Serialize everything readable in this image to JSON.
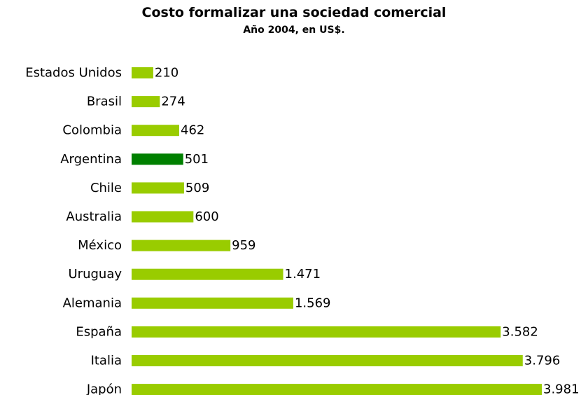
{
  "chart_data": {
    "type": "bar",
    "orientation": "horizontal",
    "title": "Costo formalizar una sociedad comercial",
    "subtitle": "Año 2004, en US$.",
    "xlabel": "",
    "ylabel": "",
    "grid": false,
    "legend": "none",
    "xlim": [
      0,
      3981
    ],
    "categories": [
      "Estados Unidos",
      "Brasil",
      "Colombia",
      "Argentina",
      "Chile",
      "Australia",
      "México",
      "Uruguay",
      "Alemania",
      "España",
      "Italia",
      "Japón"
    ],
    "values": [
      210,
      274,
      462,
      501,
      509,
      600,
      959,
      1471,
      1569,
      3582,
      3796,
      3981
    ],
    "value_labels": [
      "210",
      "274",
      "462",
      "501",
      "509",
      "600",
      "959",
      "1.471",
      "1.569",
      "3.582",
      "3.796",
      "3.981"
    ],
    "highlight": "Argentina",
    "colors": {
      "bar": "#99cc00",
      "highlight": "#008000"
    }
  }
}
